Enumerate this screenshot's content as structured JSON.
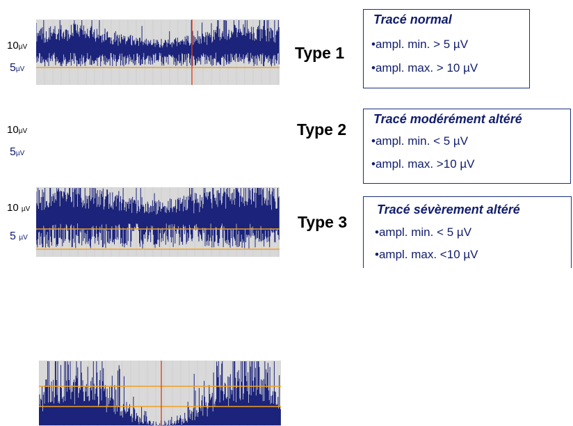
{
  "rows": [
    {
      "type_label": "Type 1",
      "axis_10": "10",
      "axis_10_unit": "µV",
      "axis_5": "5",
      "axis_5_unit": "µV",
      "box_title": "Tracé normal",
      "line1": "•ampl. min. > 5 µV",
      "line2": "•ampl. max. > 10 µV"
    },
    {
      "type_label": "Type 2",
      "axis_10": "10",
      "axis_10_unit": "µV",
      "axis_5": "5",
      "axis_5_unit": "µV",
      "box_title": "Tracé modérément altéré",
      "line1": "•ampl. min. < 5 µV",
      "line2": "•ampl. max. >10 µV"
    },
    {
      "type_label": "Type 3",
      "axis_10": "10",
      "axis_10_unit": "µV",
      "axis_5": "5",
      "axis_5_unit": "µV",
      "box_title": "Tracé sévèrement altéré",
      "line1": "•ampl. min. < 5 µV",
      "line2": "•ampl. max. <10 µV"
    }
  ],
  "colors": {
    "trace": "#1b237a",
    "threshold_line": "#f0a020",
    "marker_line": "#e0401a",
    "text_blue": "#101d6b"
  }
}
